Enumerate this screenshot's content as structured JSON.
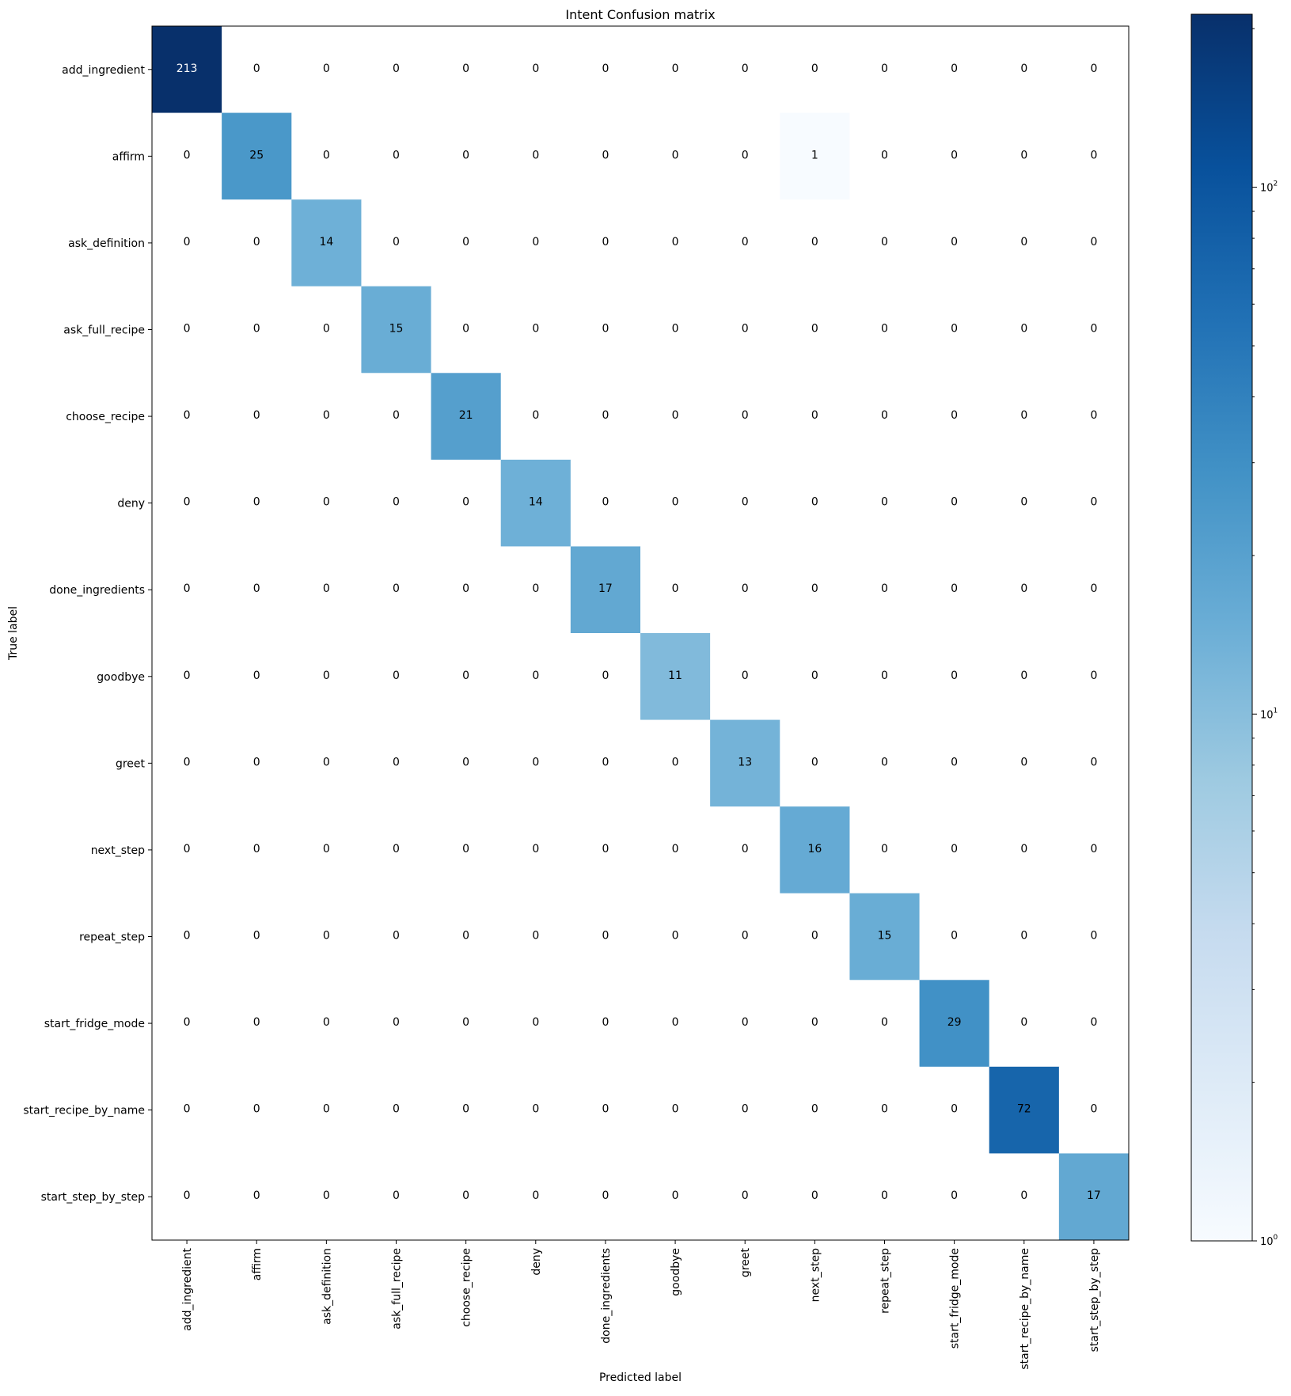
{
  "chart_data": {
    "type": "heatmap",
    "title": "Intent Confusion matrix",
    "xlabel": "Predicted label",
    "ylabel": "True label",
    "labels": [
      "add_ingredient",
      "affirm",
      "ask_definition",
      "ask_full_recipe",
      "choose_recipe",
      "deny",
      "done_ingredients",
      "goodbye",
      "greet",
      "next_step",
      "repeat_step",
      "start_fridge_mode",
      "start_recipe_by_name",
      "start_step_by_step"
    ],
    "matrix": [
      [
        213,
        0,
        0,
        0,
        0,
        0,
        0,
        0,
        0,
        0,
        0,
        0,
        0,
        0
      ],
      [
        0,
        25,
        0,
        0,
        0,
        0,
        0,
        0,
        0,
        1,
        0,
        0,
        0,
        0
      ],
      [
        0,
        0,
        14,
        0,
        0,
        0,
        0,
        0,
        0,
        0,
        0,
        0,
        0,
        0
      ],
      [
        0,
        0,
        0,
        15,
        0,
        0,
        0,
        0,
        0,
        0,
        0,
        0,
        0,
        0
      ],
      [
        0,
        0,
        0,
        0,
        21,
        0,
        0,
        0,
        0,
        0,
        0,
        0,
        0,
        0
      ],
      [
        0,
        0,
        0,
        0,
        0,
        14,
        0,
        0,
        0,
        0,
        0,
        0,
        0,
        0
      ],
      [
        0,
        0,
        0,
        0,
        0,
        0,
        17,
        0,
        0,
        0,
        0,
        0,
        0,
        0
      ],
      [
        0,
        0,
        0,
        0,
        0,
        0,
        0,
        11,
        0,
        0,
        0,
        0,
        0,
        0
      ],
      [
        0,
        0,
        0,
        0,
        0,
        0,
        0,
        0,
        13,
        0,
        0,
        0,
        0,
        0
      ],
      [
        0,
        0,
        0,
        0,
        0,
        0,
        0,
        0,
        0,
        16,
        0,
        0,
        0,
        0
      ],
      [
        0,
        0,
        0,
        0,
        0,
        0,
        0,
        0,
        0,
        0,
        15,
        0,
        0,
        0
      ],
      [
        0,
        0,
        0,
        0,
        0,
        0,
        0,
        0,
        0,
        0,
        0,
        29,
        0,
        0
      ],
      [
        0,
        0,
        0,
        0,
        0,
        0,
        0,
        0,
        0,
        0,
        0,
        0,
        72,
        0
      ],
      [
        0,
        0,
        0,
        0,
        0,
        0,
        0,
        0,
        0,
        0,
        0,
        0,
        0,
        17
      ]
    ],
    "colormap": "Blues",
    "color_scale": "log",
    "color_range": [
      1,
      213
    ],
    "colorbar": {
      "position": "right",
      "ticks": [
        {
          "base": "10",
          "exp": "0",
          "value": 1
        },
        {
          "base": "10",
          "exp": "1",
          "value": 10
        },
        {
          "base": "10",
          "exp": "2",
          "value": 100
        }
      ]
    },
    "grid": false,
    "colors": {
      "low": "#f7fbff",
      "high": "#08306b",
      "text_light": "#ffffff",
      "text_dark": "#000000"
    }
  }
}
